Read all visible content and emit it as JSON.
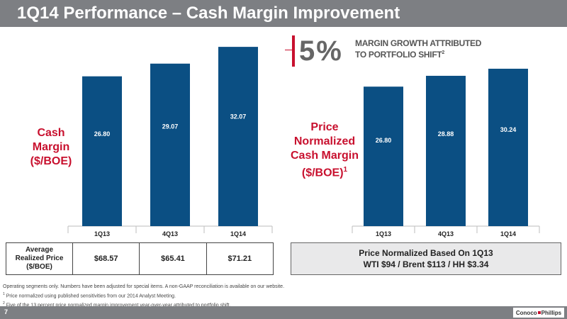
{
  "header": {
    "title": "1Q14 Performance – Cash Margin Improvement"
  },
  "left": {
    "label_lines": [
      "Cash",
      "Margin",
      "($/BOE)"
    ]
  },
  "right": {
    "label_lines": [
      "Price",
      "Normalized",
      "Cash Margin",
      "($/BOE)"
    ],
    "label_sup": "1",
    "callout": {
      "value": "5%",
      "line1": "MARGIN GROWTH ATTRIBUTED",
      "line2": "TO PORTFOLIO SHIFT",
      "sup": "2"
    }
  },
  "chart_data": [
    {
      "type": "bar",
      "categories": [
        "1Q13",
        "4Q13",
        "1Q14"
      ],
      "series": [
        {
          "values": [
            26.8,
            29.07,
            32.07
          ],
          "labels": [
            "26.80",
            "29.07",
            "32.07"
          ]
        }
      ],
      "ylim": [
        0,
        35
      ]
    },
    {
      "type": "bar",
      "categories": [
        "1Q13",
        "4Q13",
        "1Q14"
      ],
      "series": [
        {
          "values": [
            26.8,
            28.88,
            30.24
          ],
          "labels": [
            "26.80",
            "28.88",
            "30.24"
          ]
        }
      ],
      "ylim": [
        0,
        35
      ]
    }
  ],
  "price_table": {
    "header_lines": [
      "Average",
      "Realized Price",
      "($/BOE)"
    ],
    "values": [
      "$68.57",
      "$65.41",
      "$71.21"
    ]
  },
  "normalized_box": {
    "line1": "Price Normalized Based On 1Q13",
    "line2": "WTI $94 / Brent $113 / HH $3.34"
  },
  "footnotes": {
    "line1": "Operating segments only.  Numbers have been adjusted for special items. A non-GAAP reconciliation is available on our website.",
    "note1_marker": "1",
    "note1": " Price normalized using published sensitivities from our 2014 Analyst Meeting.",
    "note2_marker": "2",
    "note2": " Five of the 13 percent price normalized margin improvement year-over-year attributed to portfolio shift."
  },
  "footer": {
    "page": "7",
    "logo_left": "Conoco",
    "logo_right": "Phillips"
  },
  "colors": {
    "bar": "#0b4f83",
    "accent": "#c8102e",
    "bar_gray": "#7d7f83"
  }
}
